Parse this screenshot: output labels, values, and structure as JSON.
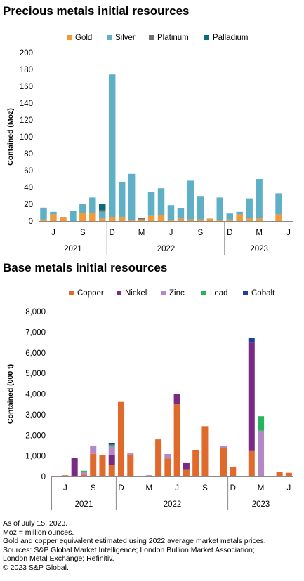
{
  "titles": {
    "precious": "Precious metals initial resources",
    "base": "Base metals initial resources"
  },
  "colors": {
    "Gold": "#f39a36",
    "Silver": "#5fb0c6",
    "Platinum": "#6f6f6f",
    "Palladium": "#0e6b7a",
    "Copper": "#e06a2b",
    "Nickel": "#7a2a85",
    "Zinc": "#b488c6",
    "Lead": "#27b45a",
    "Cobalt": "#1f3f9a"
  },
  "chart_data": [
    {
      "type": "bar",
      "stacked": true,
      "title": "Precious metals initial resources",
      "ylabel": "Contained (Moz)",
      "ylim": [
        0,
        200
      ],
      "yticks": [
        "0",
        "20",
        "40",
        "60",
        "80",
        "100",
        "120",
        "140",
        "160",
        "180",
        "200"
      ],
      "legend_position": "top",
      "month_ticks": [
        "J",
        "S",
        "D",
        "M",
        "J",
        "S",
        "D",
        "M",
        "J"
      ],
      "year_groups": [
        {
          "label": "2021",
          "months": 7
        },
        {
          "label": "2022",
          "months": 12
        },
        {
          "label": "2023",
          "months": 7
        }
      ],
      "categories": [
        "2021-06",
        "2021-07",
        "2021-08",
        "2021-09",
        "2021-10",
        "2021-11",
        "2021-12",
        "2022-01",
        "2022-02",
        "2022-03",
        "2022-04",
        "2022-05",
        "2022-06",
        "2022-07",
        "2022-08",
        "2022-09",
        "2022-10",
        "2022-11",
        "2022-12",
        "2023-01",
        "2023-02",
        "2023-03",
        "2023-04",
        "2023-05",
        "2023-06",
        "2023-07"
      ],
      "series": [
        {
          "name": "Gold",
          "values": [
            2,
            8,
            5,
            0,
            10,
            10,
            3,
            5,
            5,
            1,
            2,
            6,
            7,
            1,
            3,
            2,
            2,
            3,
            1,
            2,
            8,
            3,
            3,
            0,
            8,
            0
          ]
        },
        {
          "name": "Silver",
          "values": [
            14,
            3,
            0,
            12,
            10,
            18,
            8,
            169,
            41,
            55,
            0,
            29,
            32,
            18,
            12,
            46,
            27,
            0,
            27,
            7,
            3,
            24,
            47,
            0,
            25,
            0
          ]
        },
        {
          "name": "Platinum",
          "values": [
            0,
            0,
            0,
            0,
            0,
            0,
            2,
            0,
            0,
            0,
            2,
            0,
            0,
            0,
            0,
            0,
            0,
            0,
            0,
            0,
            0,
            0,
            0,
            0,
            0,
            0
          ]
        },
        {
          "name": "Palladium",
          "values": [
            0,
            0,
            0,
            0,
            0,
            0,
            7,
            0,
            0,
            0,
            0,
            0,
            0,
            0,
            0,
            0,
            0,
            0,
            0,
            0,
            0,
            0,
            0,
            0,
            0,
            0
          ]
        }
      ]
    },
    {
      "type": "bar",
      "stacked": true,
      "title": "Base metals initial resources",
      "ylabel": "Contained (000 t)",
      "ylim": [
        0,
        8000
      ],
      "yticks": [
        "0",
        "1,000",
        "2,000",
        "3,000",
        "4,000",
        "5,000",
        "6,000",
        "7,000",
        "8,000"
      ],
      "legend_position": "top",
      "month_ticks": [
        "J",
        "S",
        "D",
        "M",
        "J",
        "S",
        "D",
        "M",
        "J"
      ],
      "year_groups": [
        {
          "label": "2021",
          "months": 7
        },
        {
          "label": "2022",
          "months": 12
        },
        {
          "label": "2023",
          "months": 7
        }
      ],
      "categories": [
        "2021-06",
        "2021-07",
        "2021-08",
        "2021-09",
        "2021-10",
        "2021-11",
        "2021-12",
        "2022-01",
        "2022-02",
        "2022-03",
        "2022-04",
        "2022-05",
        "2022-06",
        "2022-07",
        "2022-08",
        "2022-09",
        "2022-10",
        "2022-11",
        "2022-12",
        "2023-01",
        "2023-02",
        "2023-03",
        "2023-04",
        "2023-05",
        "2023-06",
        "2023-07"
      ],
      "series": [
        {
          "name": "Copper",
          "values": [
            0,
            60,
            20,
            90,
            1100,
            1040,
            550,
            3620,
            1030,
            10,
            10,
            1800,
            870,
            3500,
            320,
            1290,
            2440,
            0,
            1370,
            480,
            0,
            1230,
            0,
            0,
            230,
            180
          ]
        },
        {
          "name": "Nickel",
          "values": [
            0,
            0,
            900,
            0,
            0,
            0,
            500,
            0,
            30,
            20,
            40,
            0,
            0,
            500,
            330,
            0,
            0,
            0,
            0,
            0,
            0,
            5260,
            0,
            0,
            0,
            0
          ]
        },
        {
          "name": "Zinc",
          "values": [
            0,
            0,
            0,
            150,
            400,
            0,
            400,
            0,
            60,
            0,
            0,
            0,
            220,
            0,
            0,
            0,
            0,
            0,
            120,
            0,
            0,
            0,
            2220,
            0,
            0,
            0
          ]
        },
        {
          "name": "Lead",
          "values": [
            0,
            0,
            0,
            40,
            0,
            0,
            100,
            0,
            0,
            0,
            0,
            0,
            0,
            0,
            0,
            0,
            0,
            0,
            0,
            0,
            0,
            0,
            700,
            0,
            0,
            0
          ]
        },
        {
          "name": "Cobalt",
          "values": [
            0,
            0,
            0,
            0,
            0,
            0,
            50,
            0,
            0,
            0,
            0,
            0,
            0,
            0,
            0,
            0,
            0,
            0,
            0,
            0,
            0,
            250,
            0,
            0,
            0,
            0
          ]
        }
      ]
    }
  ],
  "notes": [
    "As of July 15, 2023.",
    "Moz = million ounces.",
    "Gold and copper equivalent estimated using 2022 average market metals prices.",
    "Sources: S&P Global Market Intelligence; London Bullion Market Association;",
    "London Metal Exchange; Refinitiv.",
    "© 2023 S&P Global."
  ]
}
